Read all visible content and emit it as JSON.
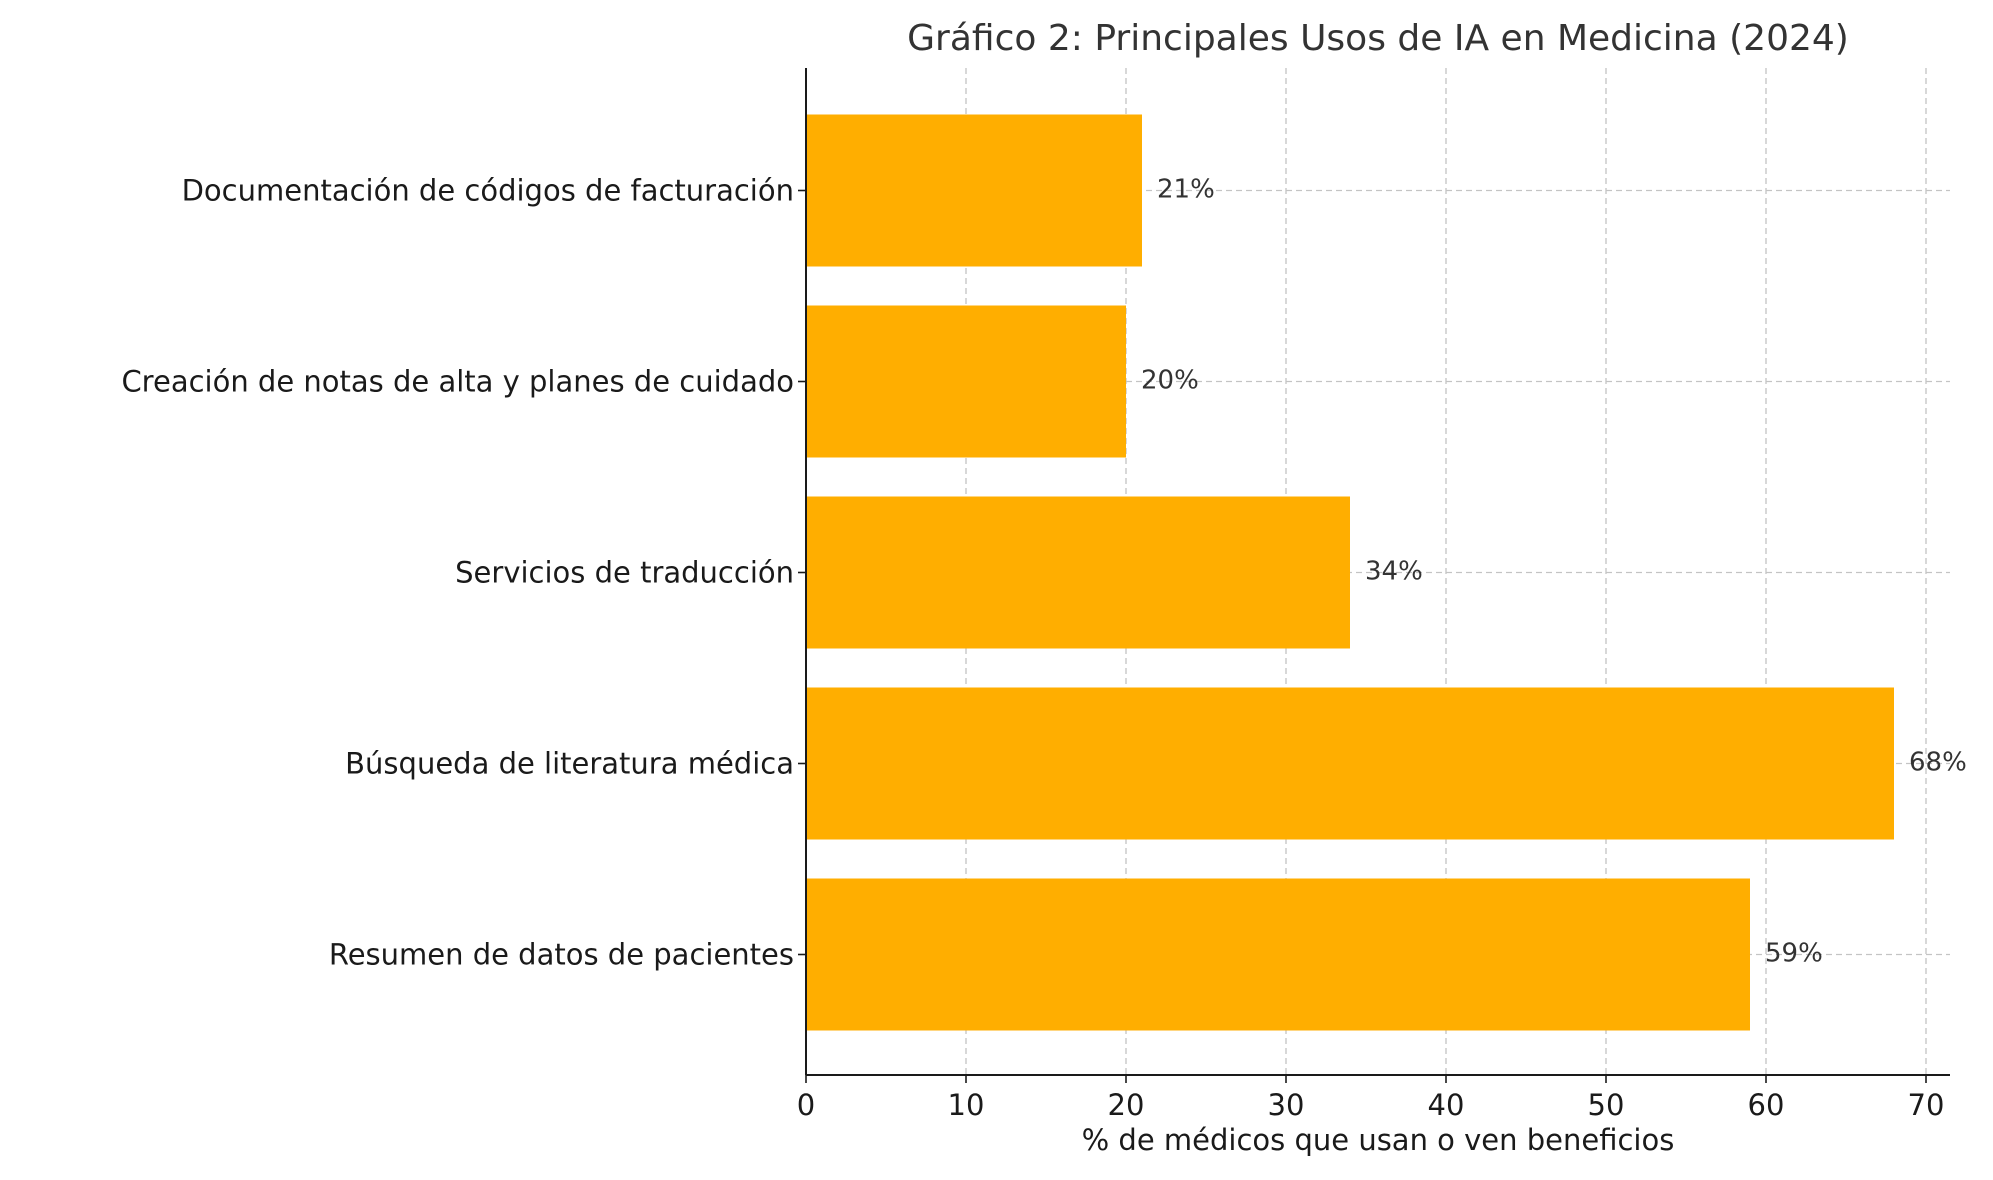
{
  "chart_data": {
    "type": "bar",
    "orientation": "horizontal",
    "title": "Gráfico 2: Principales Usos de IA en Medicina (2024)",
    "xlabel": "% de médicos que usan o ven beneficios",
    "ylabel": "",
    "xlim": [
      0,
      71.5
    ],
    "xticks": [
      0,
      10,
      20,
      30,
      40,
      50,
      60,
      70
    ],
    "grid": true,
    "bar_color": "#FFAE00",
    "categories": [
      "Resumen de datos de pacientes",
      "Búsqueda de literatura médica",
      "Servicios de traducción",
      "Creación de notas de alta y planes de cuidado",
      "Documentación de códigos de facturación"
    ],
    "values": [
      59,
      68,
      34,
      20,
      21
    ],
    "data_labels": [
      "59%",
      "68%",
      "34%",
      "20%",
      "21%"
    ]
  }
}
